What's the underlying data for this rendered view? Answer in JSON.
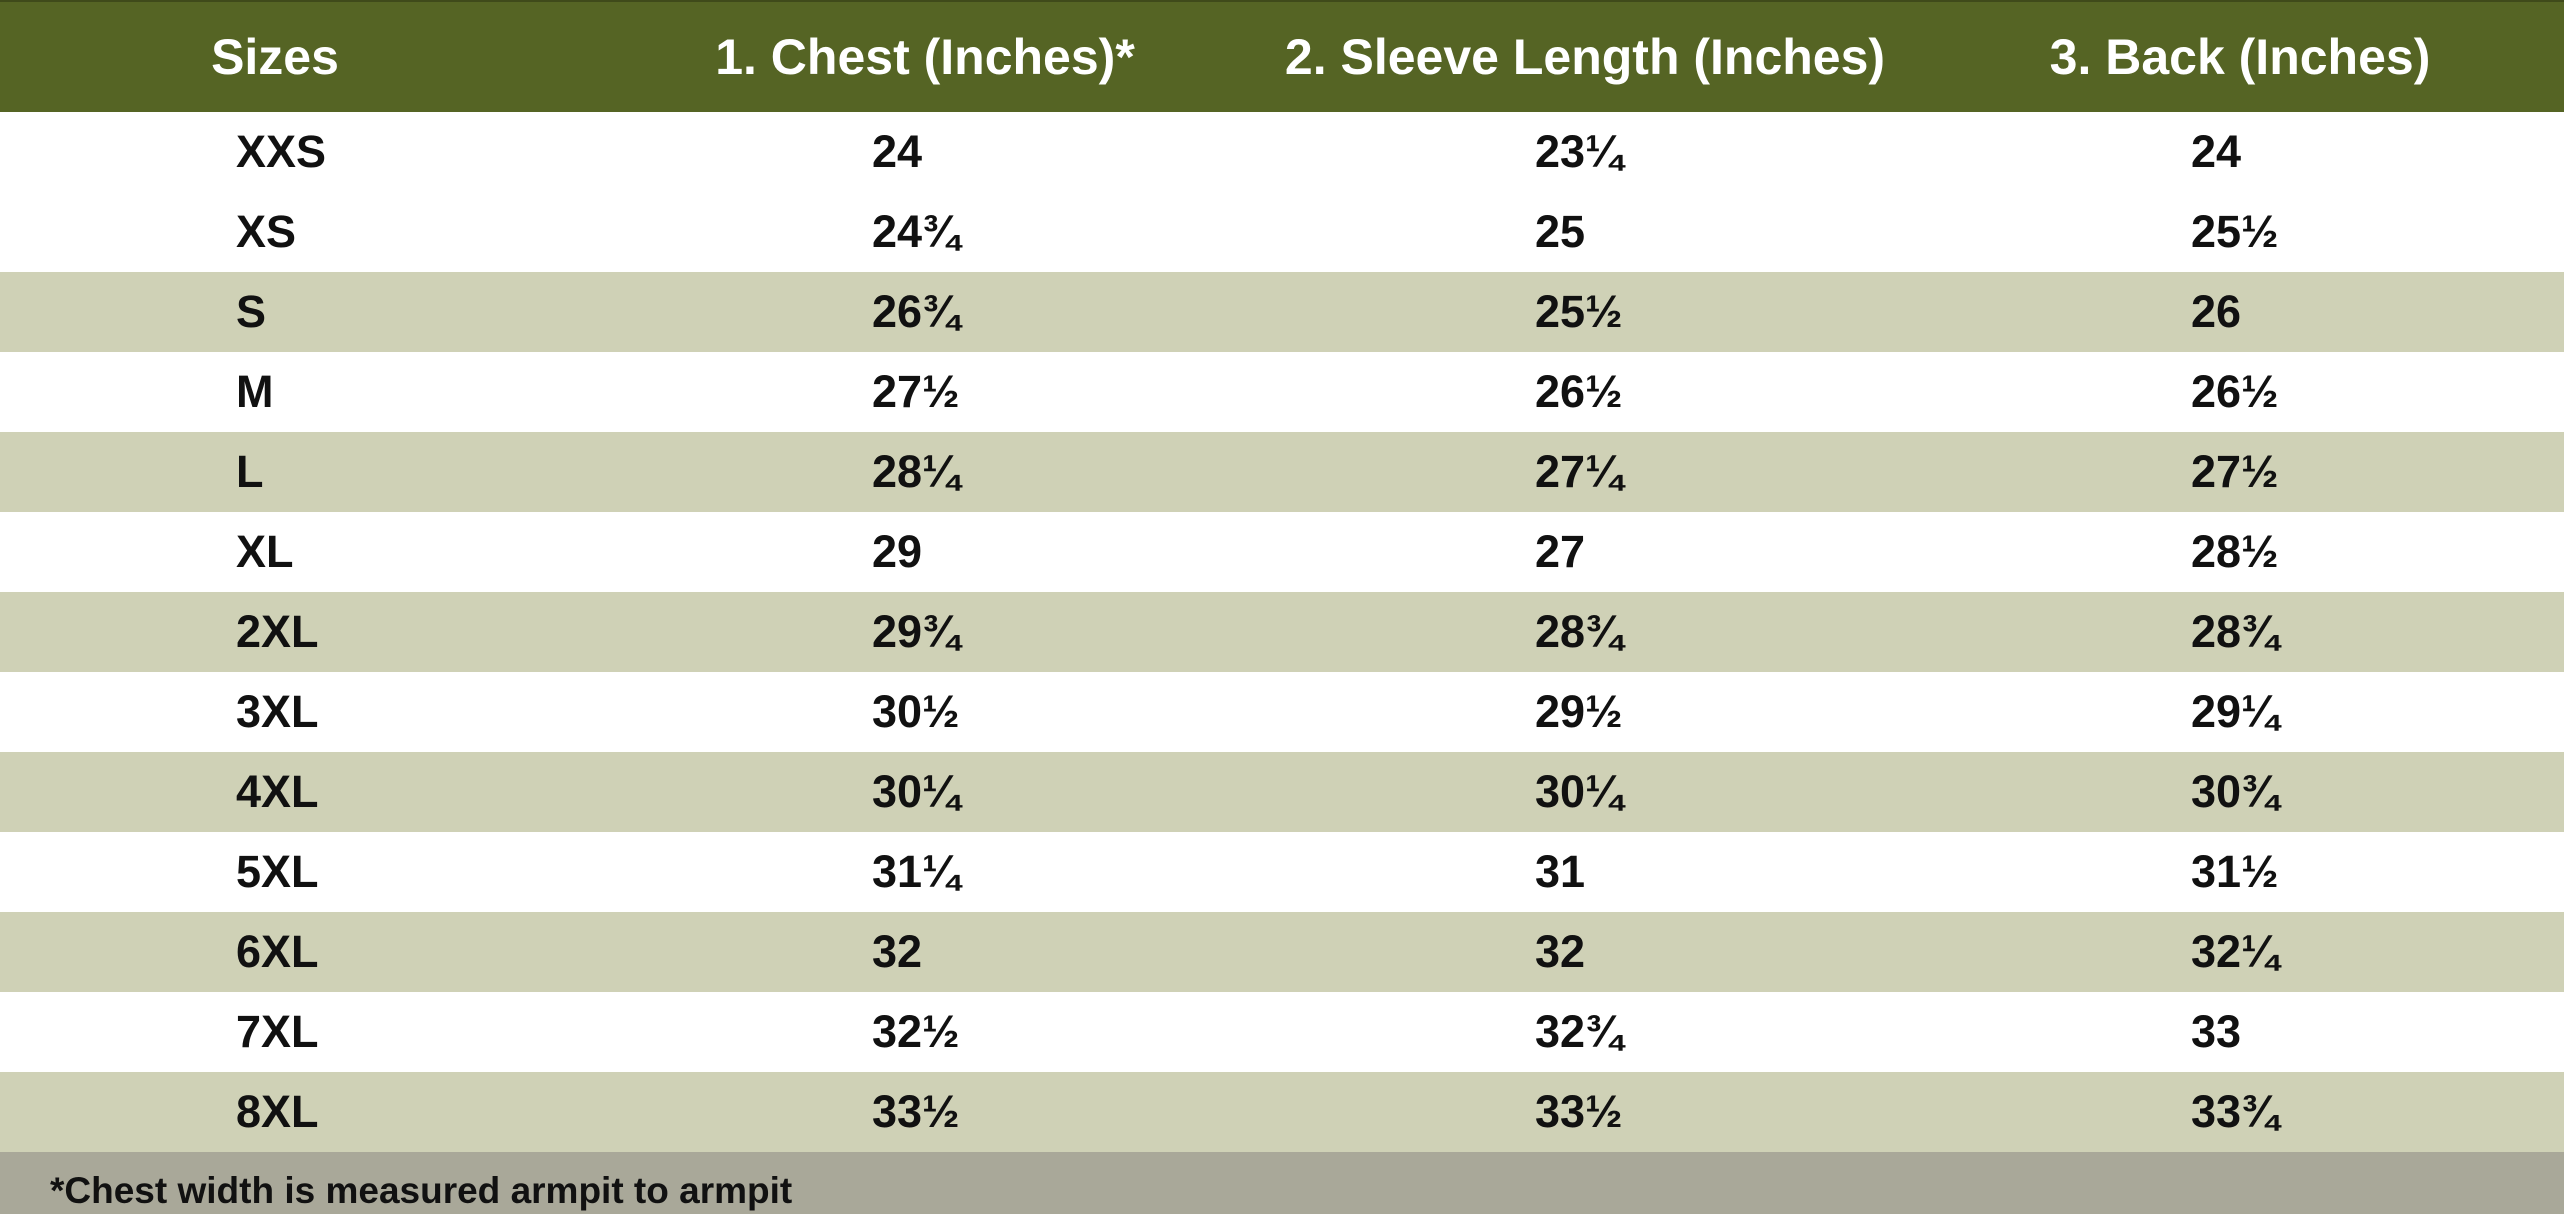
{
  "colors": {
    "header_bg": "#556424",
    "header_text": "#ffffff",
    "row_light": "#ffffff",
    "row_shaded": "#cfd1b6",
    "footer_bg": "#a9a899"
  },
  "table": {
    "headers": [
      "Sizes",
      "1. Chest (Inches)*",
      "2. Sleeve Length (Inches)",
      "3. Back (Inches)"
    ],
    "rows": [
      [
        "XXS",
        "24",
        "23¼",
        "24"
      ],
      [
        "XS",
        "24¾",
        "25",
        "25½"
      ],
      [
        "S",
        "26¾",
        "25½",
        "26"
      ],
      [
        "M",
        "27½",
        "26½",
        "26½"
      ],
      [
        "L",
        "28¼",
        "27¼",
        "27½"
      ],
      [
        "XL",
        "29",
        "27",
        "28½"
      ],
      [
        "2XL",
        "29¾",
        "28¾",
        "28¾"
      ],
      [
        "3XL",
        "30½",
        "29½",
        "29¼"
      ],
      [
        "4XL",
        "30¼",
        "30¼",
        "30¾"
      ],
      [
        "5XL",
        "31¼",
        "31",
        "31½"
      ],
      [
        "6XL",
        "32",
        "32",
        "32¼"
      ],
      [
        "7XL",
        "32½",
        "32¾",
        "33"
      ],
      [
        "8XL",
        "33½",
        "33½",
        "33¾"
      ]
    ]
  },
  "footnote": "*Chest width is measured armpit to armpit"
}
